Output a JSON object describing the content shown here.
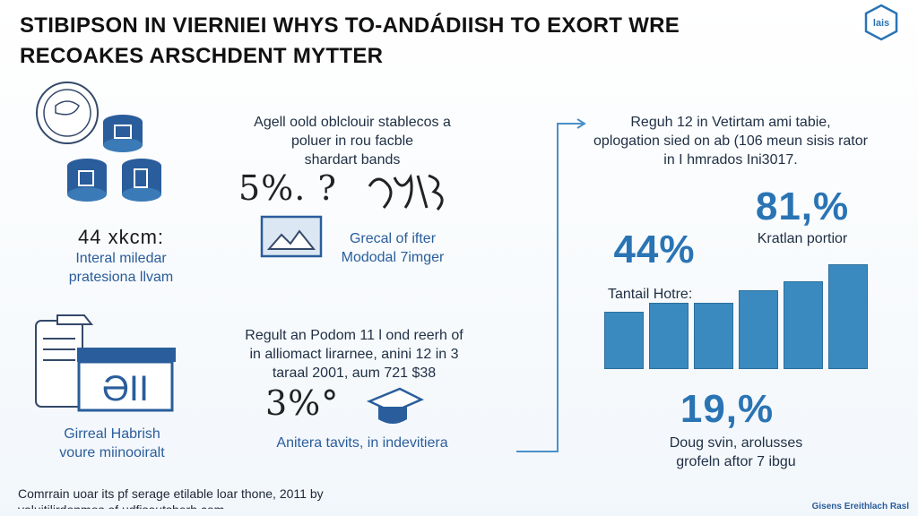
{
  "header": {
    "title_line1": "STIBIPSON IN VIERNIEI WHYS TO-ANDÁDIISH TO EXORT WRE",
    "title_line2": "RECOAKES ARSCHDENT MYTTER",
    "logo_text": "lais"
  },
  "left_col": {
    "stat": "44 xkcm:",
    "caption_line1": "Interal miledar",
    "caption_line2": "pratesiona llvam",
    "caption2_line1": "Girreal Habrish",
    "caption2_line2": "voure miinooiralt",
    "building_text": "ƏII"
  },
  "middle_col": {
    "top_text_line1": "Agell oold oblclouir stablecos a",
    "top_text_line2": "poluer in rou facble",
    "top_text_line3": "shardart bands",
    "scribble1": "5%. ?",
    "caption_line1": "Grecal of ifter",
    "caption_line2": "Mododal 7imger",
    "mid_text_line1": "Regult an Podom 11 l ond reerh of",
    "mid_text_line2": "in alliomact lirarnee, anini 12 in 3",
    "mid_text_line3": "taraal 2001, aum 721 $38",
    "scribble2": "3%°",
    "bottom_caption": "Anitera tavits, in indevitiera"
  },
  "right_col": {
    "intro_line1": "Reguh 12 in Vetirtam ami tabie,",
    "intro_line2": "oplogation sied on ab (106 meun sisis rator",
    "intro_line3": "in I hmrados Ini3017.",
    "stat_a": "81,%",
    "stat_a_label": "Kratlan portior",
    "stat_b": "44%",
    "stat_b_label": "Tantail Hotre:",
    "stat_c": "19,%",
    "stat_c_label_line1": "Doug svin, arolusses",
    "stat_c_label_line2": "grofeln aftor 7 ibgu"
  },
  "chart_data": {
    "type": "bar",
    "categories": [
      "",
      "",
      "",
      "",
      "",
      ""
    ],
    "values": [
      26,
      30,
      30,
      36,
      40,
      48
    ],
    "ylim": [
      0,
      50
    ]
  },
  "footer": {
    "line1": "Comrrain uoar its pf serage etilable loar thone, 2011 by",
    "line2": "valuitilirdonmos of udfisoutsherh.com",
    "right_text": "Gisens Ereithlach Rasl"
  },
  "colors": {
    "accent": "#2a74b4",
    "bar": "#3a8ac0",
    "ink": "#1a2b44"
  }
}
